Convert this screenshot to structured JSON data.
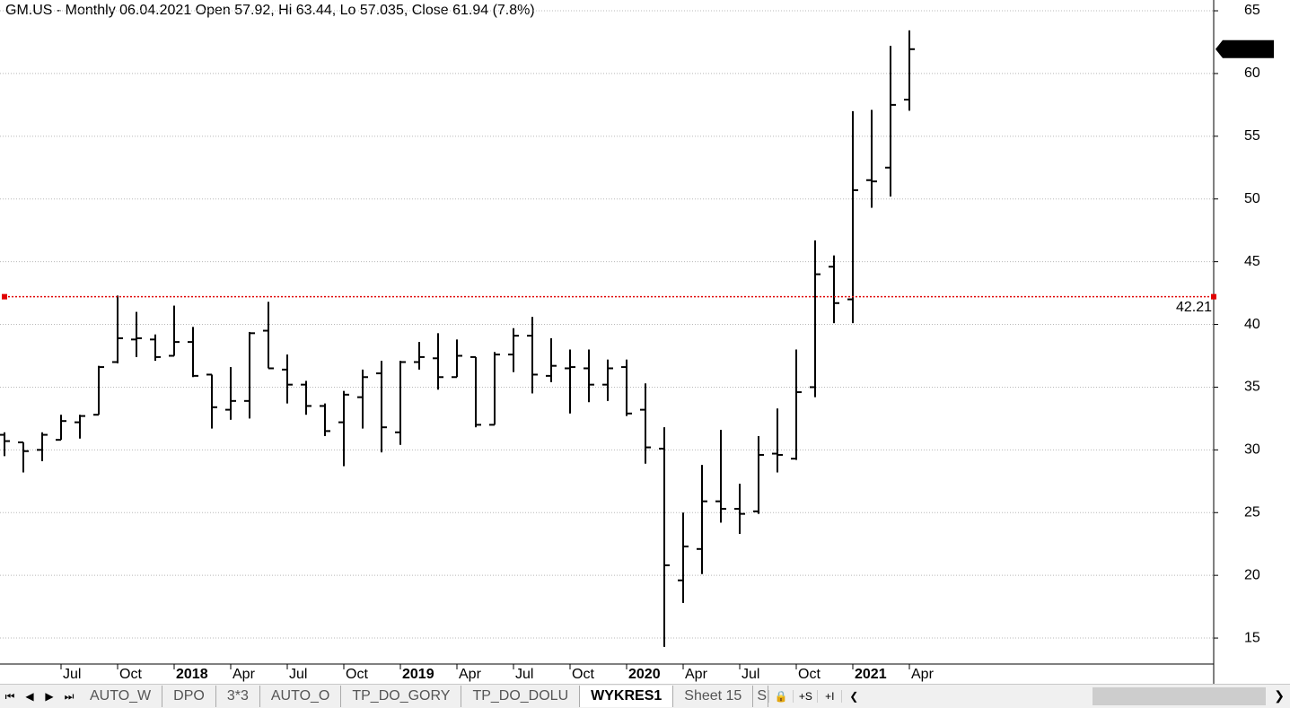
{
  "chart_data": {
    "type": "ohlc",
    "title": "GM.US - Monthly 06.04.2021 Open 57.92, Hi 63.44, Lo 57.035, Close 61.94 (7.8%)",
    "categories": [
      null,
      null,
      null,
      "Jul",
      null,
      null,
      "Oct",
      null,
      null,
      "2018",
      null,
      null,
      "Apr",
      null,
      null,
      "Jul",
      null,
      null,
      "Oct",
      null,
      null,
      "2019",
      null,
      null,
      "Apr",
      null,
      null,
      "Jul",
      null,
      null,
      "Oct",
      null,
      null,
      "2020",
      null,
      null,
      "Apr",
      null,
      null,
      "Jul",
      null,
      null,
      "Oct",
      null,
      null,
      "2021",
      null,
      null,
      "Apr"
    ],
    "open": [
      31.2,
      30.6,
      30.0,
      30.8,
      32.2,
      32.8,
      37.0,
      38.8,
      38.8,
      37.5,
      38.6,
      36.0,
      33.2,
      33.9,
      39.5,
      36.4,
      35.2,
      33.5,
      32.2,
      34.2,
      36.1,
      31.4,
      37.0,
      37.3,
      35.8,
      37.4,
      32.0,
      37.6,
      39.1,
      35.9,
      36.5,
      36.5,
      35.2,
      36.6,
      33.2,
      30.1,
      19.6,
      22.1,
      25.9,
      25.3,
      25.1,
      29.7,
      29.3,
      35.0,
      44.6,
      42.0,
      51.5,
      52.5,
      57.92
    ],
    "high": [
      31.4,
      30.6,
      31.4,
      32.8,
      32.8,
      36.7,
      42.3,
      41.0,
      39.2,
      41.5,
      39.8,
      36.0,
      36.6,
      39.4,
      41.8,
      37.6,
      35.5,
      33.7,
      34.7,
      36.4,
      37.1,
      37.1,
      38.6,
      39.3,
      38.8,
      37.4,
      37.8,
      39.7,
      40.6,
      38.9,
      38.0,
      38.0,
      37.2,
      37.2,
      35.3,
      31.8,
      25.0,
      28.8,
      31.6,
      27.3,
      31.1,
      33.3,
      38.0,
      46.7,
      45.5,
      57.0,
      57.1,
      62.2,
      63.44
    ],
    "low": [
      29.5,
      28.2,
      29.1,
      30.8,
      30.9,
      32.8,
      36.9,
      37.4,
      37.1,
      37.5,
      35.8,
      31.7,
      32.4,
      32.5,
      36.5,
      33.7,
      32.8,
      31.1,
      28.7,
      31.7,
      29.8,
      30.4,
      36.4,
      34.8,
      35.8,
      31.8,
      32.0,
      36.2,
      34.5,
      35.4,
      32.9,
      33.8,
      33.9,
      32.7,
      28.9,
      14.3,
      17.8,
      20.1,
      24.2,
      23.3,
      24.9,
      28.2,
      29.2,
      34.2,
      40.1,
      40.1,
      49.3,
      50.2,
      57.035
    ],
    "close": [
      30.7,
      29.9,
      31.2,
      32.3,
      32.7,
      36.6,
      38.9,
      38.9,
      37.4,
      38.6,
      35.9,
      33.4,
      33.9,
      39.3,
      36.5,
      35.2,
      33.5,
      31.5,
      34.4,
      35.8,
      31.8,
      37.0,
      37.4,
      35.8,
      37.5,
      32.0,
      37.6,
      39.1,
      36.0,
      36.7,
      36.6,
      35.2,
      36.5,
      32.9,
      30.2,
      20.8,
      22.3,
      25.9,
      25.3,
      24.9,
      29.6,
      29.6,
      34.6,
      44.0,
      41.7,
      50.7,
      51.4,
      57.5,
      61.94
    ],
    "color": "#000000",
    "level": 42.21,
    "level_color": "#e00000",
    "ylim": [
      12.93,
      65.86
    ],
    "yticks": [
      15,
      20,
      25,
      30,
      35,
      40,
      45,
      50,
      55,
      60,
      65
    ],
    "grid": true
  },
  "tabs": [
    "AUTO_W",
    "DPO",
    "3*3",
    "AUTO_O",
    "TP_DO_GORY",
    "TP_DO_DOLU",
    "WYKRES1",
    "Sheet 15",
    "S"
  ],
  "active_tab": 6
}
